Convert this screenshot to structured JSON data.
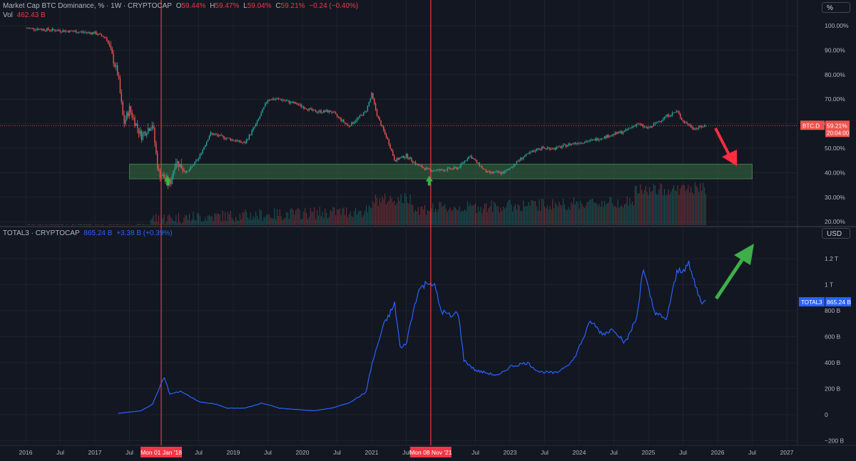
{
  "header": {
    "title": "Market Cap BTC Dominance, % · 1W · CRYPTOCAP",
    "o_label": "O",
    "o": "59.44%",
    "h_label": "H",
    "h": "59.47%",
    "l_label": "L",
    "l": "59.04%",
    "c_label": "C",
    "c": "59.21%",
    "change": "−0.24 (−0.40%)",
    "vol_label": "Vol",
    "vol": "462.43 B"
  },
  "lower_header": {
    "title": "TOTAL3 · CRYPTOCAP",
    "value": "865.24 B",
    "change": "+3.38 B (+0.39%)"
  },
  "colors": {
    "bg": "#131722",
    "up": "#26a69a",
    "down": "#ef5350",
    "line": "#2962ff",
    "marker": "#f23645",
    "zone": "#2e5a3a",
    "arrow_up": "#3fae49"
  },
  "chart_data": [
    {
      "type": "candlestick",
      "title": "Market Cap BTC Dominance, %",
      "ylabel": "%",
      "ylim": [
        19,
        104
      ],
      "y_ticks": [
        "100.00%",
        "90.00%",
        "80.00%",
        "70.00%",
        "60.00%",
        "50.00%",
        "40.00%",
        "30.00%",
        "20.00%"
      ],
      "last_label": "BTC.D",
      "last_value": "59.21%",
      "countdown": "20:04:00",
      "support_zone_percent": [
        37.5,
        43.5
      ],
      "series_points": [
        [
          "2016-01",
          99
        ],
        [
          "2016-07",
          98
        ],
        [
          "2017-01",
          97
        ],
        [
          "2017-03",
          95
        ],
        [
          "2017-05",
          80
        ],
        [
          "2017-06",
          60
        ],
        [
          "2017-07",
          66
        ],
        [
          "2017-09",
          55
        ],
        [
          "2017-11",
          60
        ],
        [
          "2017-12",
          40
        ],
        [
          "2018-01",
          38
        ],
        [
          "2018-02",
          35
        ],
        [
          "2018-03",
          45
        ],
        [
          "2018-05",
          40
        ],
        [
          "2018-07",
          46
        ],
        [
          "2018-09",
          56
        ],
        [
          "2018-12",
          54
        ],
        [
          "2019-03",
          52
        ],
        [
          "2019-05",
          60
        ],
        [
          "2019-07",
          70
        ],
        [
          "2019-09",
          70
        ],
        [
          "2019-12",
          68
        ],
        [
          "2020-03",
          65
        ],
        [
          "2020-06",
          65
        ],
        [
          "2020-09",
          59
        ],
        [
          "2020-12",
          65
        ],
        [
          "2021-01",
          72
        ],
        [
          "2021-02",
          63
        ],
        [
          "2021-04",
          52
        ],
        [
          "2021-05",
          45
        ],
        [
          "2021-07",
          47
        ],
        [
          "2021-09",
          43
        ],
        [
          "2021-11",
          41
        ],
        [
          "2022-01",
          41
        ],
        [
          "2022-04",
          42
        ],
        [
          "2022-06",
          47
        ],
        [
          "2022-09",
          40
        ],
        [
          "2022-12",
          40
        ],
        [
          "2023-03",
          46
        ],
        [
          "2023-06",
          50
        ],
        [
          "2023-09",
          50
        ],
        [
          "2023-12",
          52
        ],
        [
          "2024-03",
          53
        ],
        [
          "2024-06",
          55
        ],
        [
          "2024-09",
          57
        ],
        [
          "2024-11",
          60
        ],
        [
          "2025-01",
          58
        ],
        [
          "2025-04",
          63
        ],
        [
          "2025-06",
          65
        ],
        [
          "2025-07",
          61
        ],
        [
          "2025-09",
          58
        ],
        [
          "2025-11",
          59.21
        ]
      ]
    },
    {
      "type": "line",
      "title": "TOTAL3",
      "ylabel": "USD",
      "ylim": [
        -0.2,
        1.35
      ],
      "y_ticks": [
        "1.2 T",
        "1 T",
        "800 B",
        "600 B",
        "400 B",
        "200 B",
        "0",
        "−200 B"
      ],
      "last_label": "TOTAL3",
      "last_value": "865.24 B",
      "series": [
        {
          "name": "TOTAL3",
          "points": [
            [
              "2017-05",
              0.01
            ],
            [
              "2017-09",
              0.03
            ],
            [
              "2017-11",
              0.08
            ],
            [
              "2018-01",
              0.29
            ],
            [
              "2018-02",
              0.16
            ],
            [
              "2018-04",
              0.18
            ],
            [
              "2018-07",
              0.1
            ],
            [
              "2018-10",
              0.08
            ],
            [
              "2018-12",
              0.05
            ],
            [
              "2019-03",
              0.05
            ],
            [
              "2019-06",
              0.09
            ],
            [
              "2019-09",
              0.05
            ],
            [
              "2019-12",
              0.04
            ],
            [
              "2020-03",
              0.03
            ],
            [
              "2020-06",
              0.05
            ],
            [
              "2020-09",
              0.09
            ],
            [
              "2020-12",
              0.17
            ],
            [
              "2021-01",
              0.38
            ],
            [
              "2021-03",
              0.68
            ],
            [
              "2021-05",
              0.85
            ],
            [
              "2021-06",
              0.5
            ],
            [
              "2021-07",
              0.55
            ],
            [
              "2021-09",
              0.95
            ],
            [
              "2021-11",
              1.03
            ],
            [
              "2021-12",
              0.98
            ],
            [
              "2022-01",
              0.8
            ],
            [
              "2022-03",
              0.75
            ],
            [
              "2022-04",
              0.8
            ],
            [
              "2022-05",
              0.42
            ],
            [
              "2022-07",
              0.34
            ],
            [
              "2022-11",
              0.3
            ],
            [
              "2023-01",
              0.37
            ],
            [
              "2023-04",
              0.4
            ],
            [
              "2023-06",
              0.33
            ],
            [
              "2023-09",
              0.32
            ],
            [
              "2023-12",
              0.42
            ],
            [
              "2024-03",
              0.72
            ],
            [
              "2024-05",
              0.62
            ],
            [
              "2024-07",
              0.66
            ],
            [
              "2024-09",
              0.55
            ],
            [
              "2024-11",
              0.75
            ],
            [
              "2024-12",
              1.12
            ],
            [
              "2025-02",
              0.8
            ],
            [
              "2025-04",
              0.72
            ],
            [
              "2025-06",
              1.1
            ],
            [
              "2025-08",
              1.15
            ],
            [
              "2025-10",
              0.88
            ],
            [
              "2025-11",
              0.86524
            ]
          ]
        }
      ]
    }
  ],
  "x_axis": {
    "ticks": [
      [
        "2016-01",
        "2016"
      ],
      [
        "2016-07",
        "Jul"
      ],
      [
        "2017-01",
        "2017"
      ],
      [
        "2017-07",
        "Jul"
      ],
      [
        "2018-07",
        "Jul"
      ],
      [
        "2019-01",
        "2019"
      ],
      [
        "2019-07",
        "Jul"
      ],
      [
        "2020-01",
        "2020"
      ],
      [
        "2020-07",
        "Jul"
      ],
      [
        "2021-01",
        "2021"
      ],
      [
        "2021-07",
        "Jul"
      ],
      [
        "2022-07",
        "Jul"
      ],
      [
        "2023-01",
        "2023"
      ],
      [
        "2023-07",
        "Jul"
      ],
      [
        "2024-01",
        "2024"
      ],
      [
        "2024-07",
        "Jul"
      ],
      [
        "2025-01",
        "2025"
      ],
      [
        "2025-07",
        "Jul"
      ],
      [
        "2026-01",
        "2026"
      ],
      [
        "2026-07",
        "Jul"
      ],
      [
        "2027-01",
        "2027"
      ]
    ],
    "markers": [
      [
        "2018-01",
        "Mon 01 Jan '18"
      ],
      [
        "2021-11",
        "Mon 08 Nov '21"
      ]
    ]
  },
  "unit_labels": {
    "upper": "%",
    "lower": "USD"
  }
}
